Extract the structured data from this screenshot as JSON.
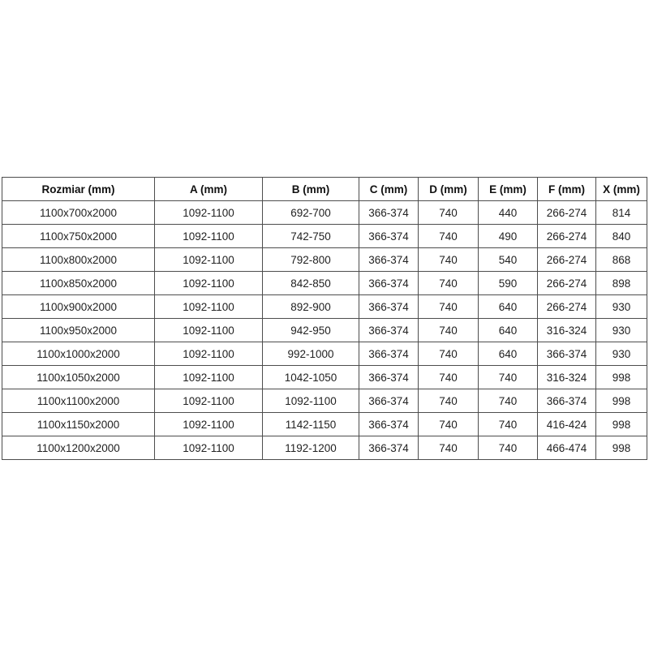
{
  "table": {
    "border_color": "#4d4d4d",
    "headers": [
      "Rozmiar (mm)",
      "A (mm)",
      "B (mm)",
      "C (mm)",
      "D (mm)",
      "E (mm)",
      "F (mm)",
      "X (mm)"
    ],
    "rows": [
      [
        "1100x700x2000",
        "1092-1100",
        "692-700",
        "366-374",
        "740",
        "440",
        "266-274",
        "814"
      ],
      [
        "1100x750x2000",
        "1092-1100",
        "742-750",
        "366-374",
        "740",
        "490",
        "266-274",
        "840"
      ],
      [
        "1100x800x2000",
        "1092-1100",
        "792-800",
        "366-374",
        "740",
        "540",
        "266-274",
        "868"
      ],
      [
        "1100x850x2000",
        "1092-1100",
        "842-850",
        "366-374",
        "740",
        "590",
        "266-274",
        "898"
      ],
      [
        "1100x900x2000",
        "1092-1100",
        "892-900",
        "366-374",
        "740",
        "640",
        "266-274",
        "930"
      ],
      [
        "1100x950x2000",
        "1092-1100",
        "942-950",
        "366-374",
        "740",
        "640",
        "316-324",
        "930"
      ],
      [
        "1100x1000x2000",
        "1092-1100",
        "992-1000",
        "366-374",
        "740",
        "640",
        "366-374",
        "930"
      ],
      [
        "1100x1050x2000",
        "1092-1100",
        "1042-1050",
        "366-374",
        "740",
        "740",
        "316-324",
        "998"
      ],
      [
        "1100x1100x2000",
        "1092-1100",
        "1092-1100",
        "366-374",
        "740",
        "740",
        "366-374",
        "998"
      ],
      [
        "1100x1150x2000",
        "1092-1100",
        "1142-1150",
        "366-374",
        "740",
        "740",
        "416-424",
        "998"
      ],
      [
        "1100x1200x2000",
        "1092-1100",
        "1192-1200",
        "366-374",
        "740",
        "740",
        "466-474",
        "998"
      ]
    ]
  }
}
